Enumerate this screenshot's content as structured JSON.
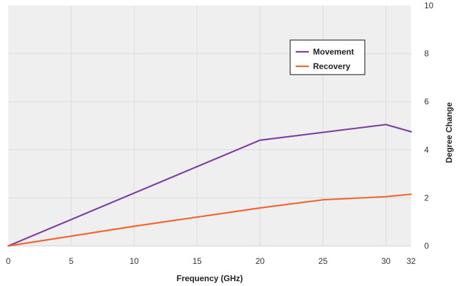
{
  "chart_data": {
    "type": "line",
    "title": "",
    "xlabel": "Frequency (GHz)",
    "ylabel": "Degree Change",
    "xlim": [
      0,
      32
    ],
    "ylim": [
      0,
      10
    ],
    "x_ticks": [
      0,
      5,
      10,
      15,
      20,
      25,
      30,
      32
    ],
    "y_ticks": [
      0,
      2,
      4,
      6,
      8,
      10
    ],
    "grid": true,
    "legend_position": "top-right",
    "series": [
      {
        "name": "Movement",
        "color": "#7b3fa6",
        "points": [
          [
            0,
            0
          ],
          [
            20,
            4.4
          ],
          [
            30,
            5.05
          ],
          [
            32,
            4.75
          ]
        ]
      },
      {
        "name": "Recovery",
        "color": "#f2652c",
        "points": [
          [
            0,
            0
          ],
          [
            10,
            0.82
          ],
          [
            20,
            1.58
          ],
          [
            25,
            1.92
          ],
          [
            30,
            2.05
          ],
          [
            32,
            2.15
          ]
        ]
      }
    ]
  }
}
